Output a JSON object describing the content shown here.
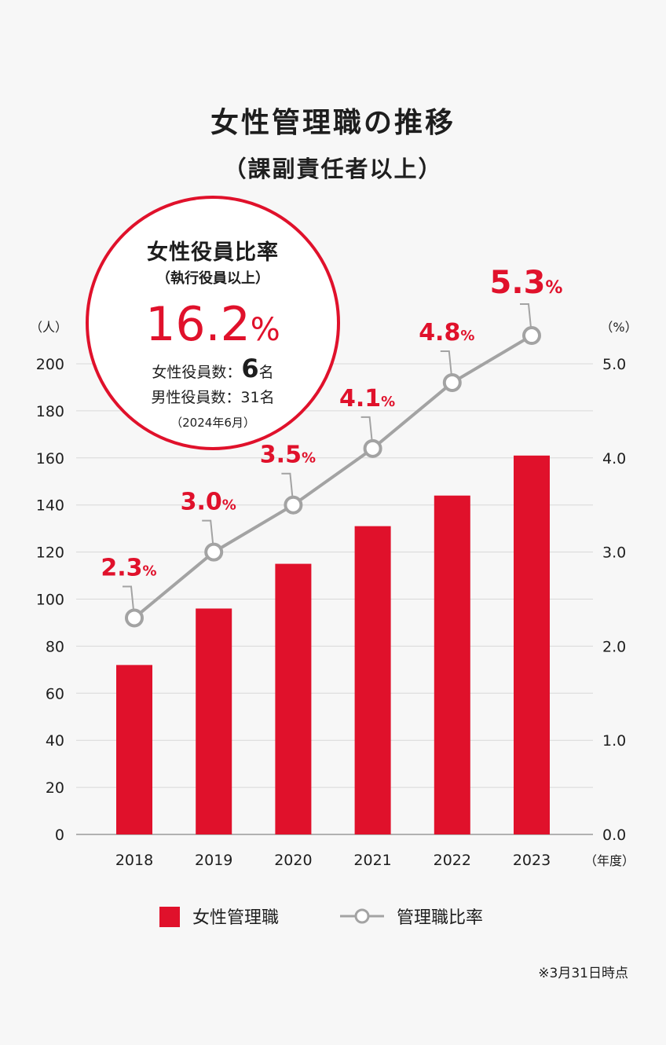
{
  "chart_data": {
    "type": "bar",
    "title": "女性管理職の推移",
    "subtitle": "（課副責任者以上）",
    "categories": [
      "2018",
      "2019",
      "2020",
      "2021",
      "2022",
      "2023"
    ],
    "x_unit": "（年度）",
    "series": [
      {
        "name": "女性管理職",
        "type": "bar",
        "axis": "left",
        "color": "#e0112b",
        "values": [
          72,
          96,
          115,
          131,
          144,
          161
        ]
      },
      {
        "name": "管理職比率",
        "type": "line",
        "axis": "right",
        "color": "#a3a3a3",
        "values": [
          2.3,
          3.0,
          3.5,
          4.1,
          4.8,
          5.3
        ],
        "labels": [
          "2.3",
          "3.0",
          "3.5",
          "4.1",
          "4.8",
          "5.3"
        ],
        "label_suffix": "%"
      }
    ],
    "y_left": {
      "unit": "（人）",
      "ylim": [
        0,
        200
      ],
      "ticks": [
        "0",
        "20",
        "40",
        "60",
        "80",
        "100",
        "120",
        "140",
        "160",
        "180",
        "200"
      ]
    },
    "y_right": {
      "unit": "（%）",
      "ylim": [
        0,
        5.0
      ],
      "ticks": [
        "0.0",
        "1.0",
        "2.0",
        "3.0",
        "4.0",
        "5.0"
      ]
    },
    "grid": true,
    "legend_position": "bottom-center"
  },
  "callout": {
    "title": "女性役員比率",
    "subtitle": "（執行役員以上）",
    "value": "16.2",
    "value_suffix": "%",
    "female_label": "女性役員数：",
    "female_count": "6",
    "female_unit": "名",
    "male_line": "男性役員数：31名",
    "date": "（2024年6月）",
    "color": "#e0112b"
  },
  "note": "※3月31日時点"
}
